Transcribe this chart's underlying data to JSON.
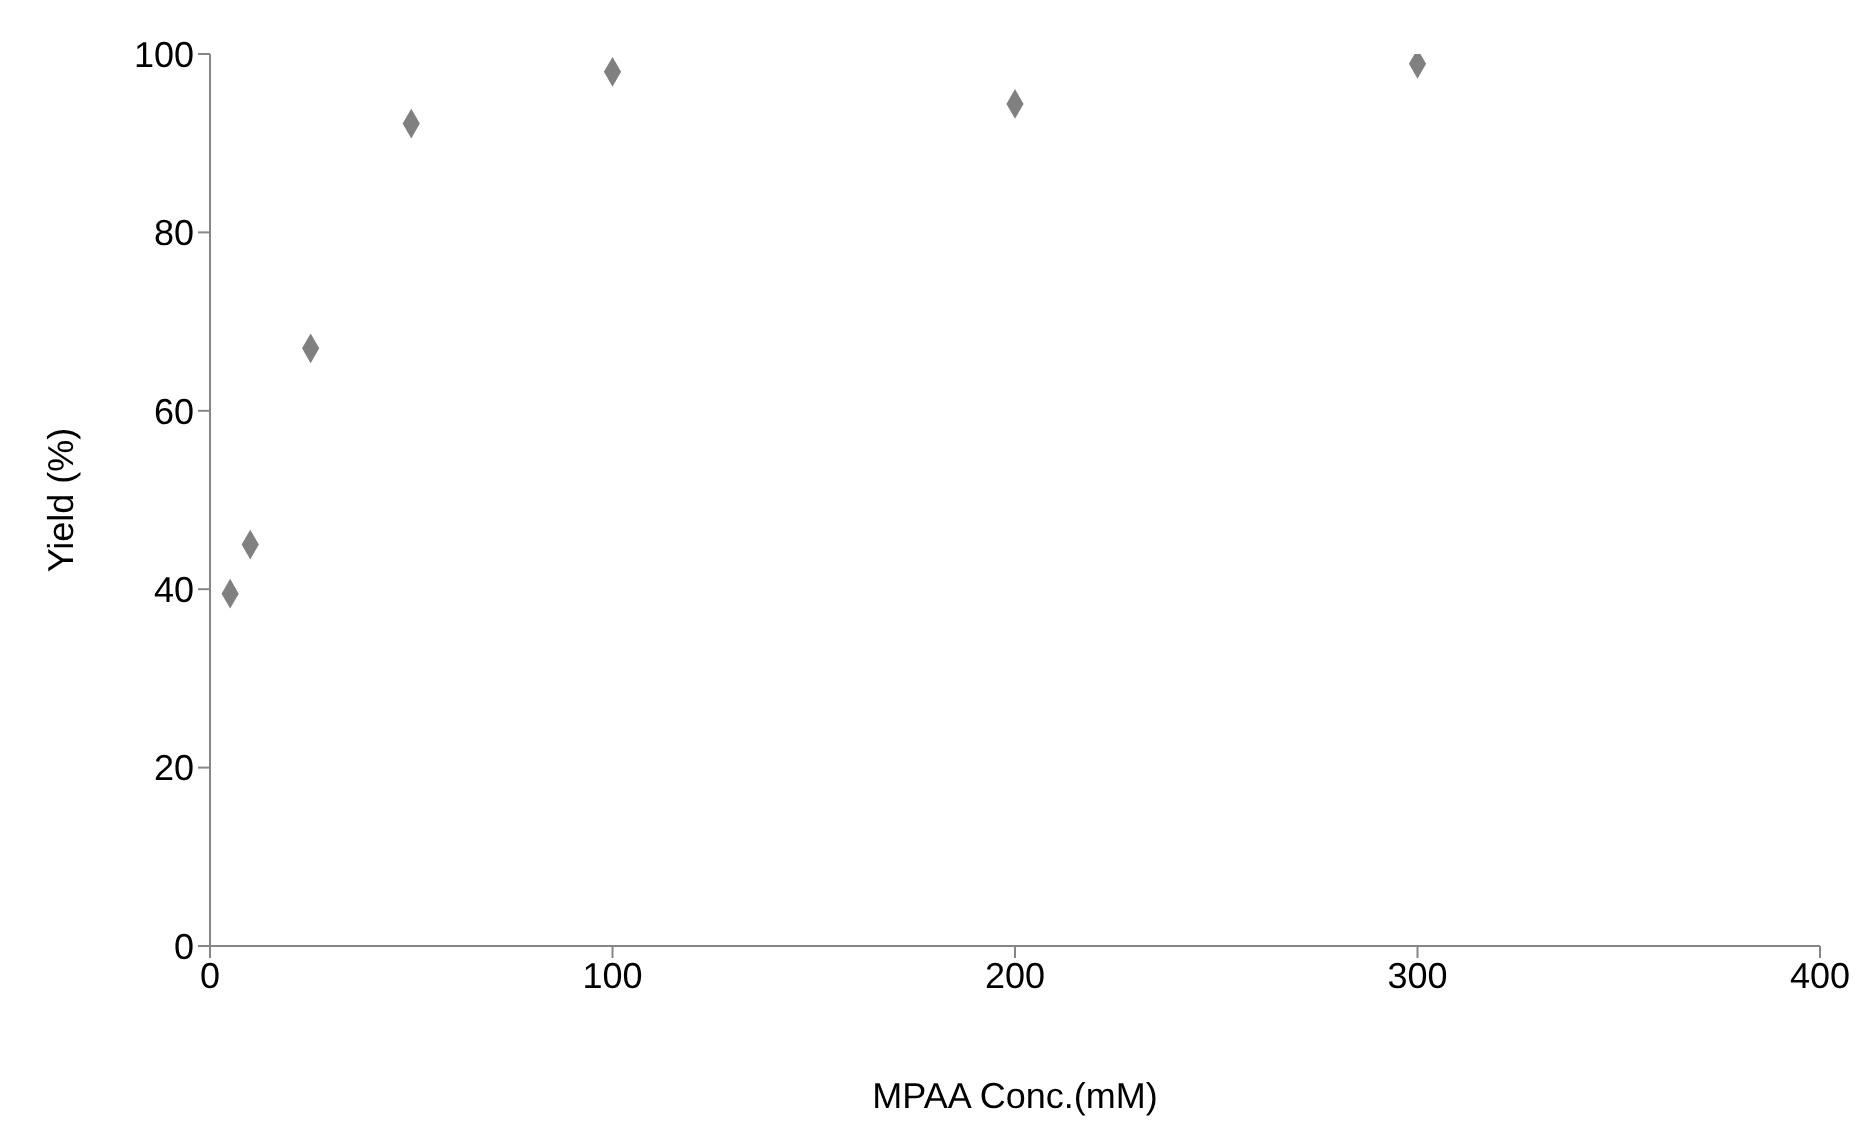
{
  "chart_data": {
    "type": "scatter",
    "xlabel": "MPAA  Conc.(mM)",
    "ylabel": "Yield (%)",
    "x": [
      5,
      10,
      25,
      50,
      100,
      200,
      300
    ],
    "values": [
      39.5,
      45,
      67,
      92.2,
      98,
      94.4,
      98.9
    ],
    "color": "#808080",
    "marker": "diamond",
    "xlim": [
      0,
      400
    ],
    "xticks": [
      0,
      100,
      200,
      300,
      400
    ],
    "ylim": [
      0,
      100
    ],
    "yticks": [
      0,
      20,
      40,
      60,
      80,
      100
    ],
    "grid": false,
    "legend": false
  }
}
